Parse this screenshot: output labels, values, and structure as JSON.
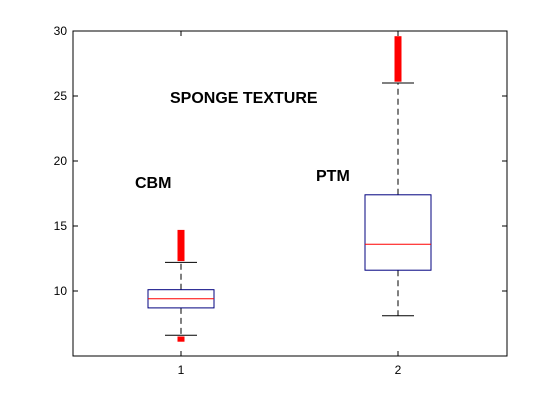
{
  "chart_data": {
    "type": "box",
    "title": "",
    "xlabel": "",
    "ylabel": "",
    "categories": [
      "1",
      "2"
    ],
    "ylim": [
      5,
      30
    ],
    "yticks": [
      10,
      15,
      20,
      25,
      30
    ],
    "annotations": [
      "SPONGE TEXTURE",
      "CBM",
      "PTM"
    ],
    "boxes": [
      {
        "category": "1",
        "whisker_low": 6.6,
        "q1": 8.7,
        "median": 9.4,
        "q3": 10.1,
        "whisker_high": 12.2,
        "outliers_high": [
          12.3,
          14.7
        ],
        "outliers_low": [
          6.1,
          6.5
        ]
      },
      {
        "category": "2",
        "whisker_low": 8.1,
        "q1": 11.6,
        "median": 13.6,
        "q3": 17.4,
        "whisker_high": 26.0,
        "outliers_high": [
          26.1,
          29.6
        ],
        "outliers_low": []
      }
    ],
    "colors": {
      "box": "#00007f",
      "median": "#ff0000",
      "whisker": "#000000",
      "outlier": "#ff0000",
      "axis": "#000000"
    }
  }
}
